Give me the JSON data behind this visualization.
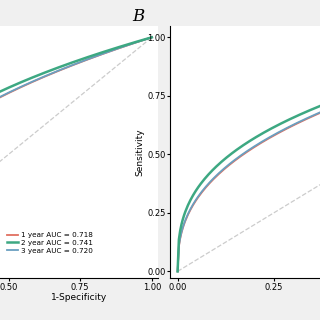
{
  "auc_1yr": 0.718,
  "auc_2yr": 0.741,
  "auc_3yr": 0.72,
  "color_1yr": "#E07060",
  "color_2yr": "#3DA882",
  "color_3yr": "#6A9FC0",
  "legend_labels": [
    "1 year AUC = 0.718",
    "2 year AUC = 0.741",
    "3 year AUC = 0.720"
  ],
  "panel_B_label": "B",
  "ylabel_B": "Sensitivity",
  "xlabel_A": "1-Specificity",
  "background_color": "#f0f0f0",
  "panel_bg": "#ffffff",
  "diag_color": "#cccccc",
  "left_xlim": [
    0.47,
    1.02
  ],
  "left_ylim": [
    -0.03,
    1.05
  ],
  "right_xlim": [
    -0.02,
    0.37
  ],
  "right_ylim": [
    -0.03,
    1.05
  ],
  "left_xticks": [
    0.5,
    0.75,
    1.0
  ],
  "right_xticks": [
    0.0,
    0.25
  ],
  "right_yticks": [
    0.0,
    0.25,
    0.5,
    0.75,
    1.0
  ]
}
